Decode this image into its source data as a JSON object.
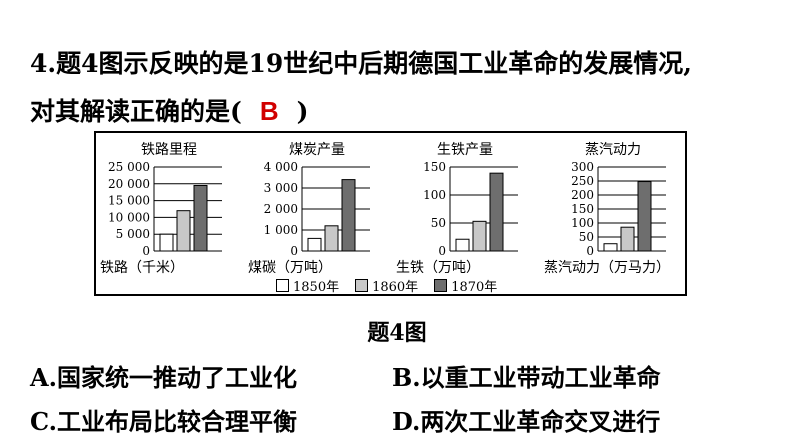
{
  "question": {
    "line1": "4.题4图示反映的是19世纪中后期德国工业革命的发展情况,",
    "line2_prefix": "对其解读正确的是(",
    "answer": "B",
    "line2_suffix": ")"
  },
  "figure_caption": "题4图",
  "legend": [
    "1850年",
    "1860年",
    "1870年"
  ],
  "colors": {
    "bar_1850": "#ffffff",
    "bar_1860": "#c8c8c8",
    "bar_1870": "#6e6e6e",
    "answer": "#d10000"
  },
  "chart_data": [
    {
      "type": "bar",
      "title": "铁路里程",
      "xlabel": "铁路（千米）",
      "categories": [
        "1850年",
        "1860年",
        "1870年"
      ],
      "values": [
        5000,
        12000,
        19500
      ],
      "ylim": [
        0,
        25000
      ],
      "yticks": [
        0,
        5000,
        10000,
        15000,
        20000,
        25000
      ],
      "ytick_labels": [
        "0",
        "5 000",
        "10 000",
        "15 000",
        "20 000",
        "25 000"
      ]
    },
    {
      "type": "bar",
      "title": "煤炭产量",
      "xlabel": "煤碳（万吨）",
      "categories": [
        "1850年",
        "1860年",
        "1870年"
      ],
      "values": [
        600,
        1200,
        3400
      ],
      "ylim": [
        0,
        4000
      ],
      "yticks": [
        0,
        1000,
        2000,
        3000,
        4000
      ],
      "ytick_labels": [
        "0",
        "1 000",
        "2 000",
        "3 000",
        "4 000"
      ]
    },
    {
      "type": "bar",
      "title": "生铁产量",
      "xlabel": "生铁（万吨）",
      "categories": [
        "1850年",
        "1860年",
        "1870年"
      ],
      "values": [
        21,
        53,
        139
      ],
      "ylim": [
        0,
        150
      ],
      "yticks": [
        0,
        50,
        100,
        150
      ],
      "ytick_labels": [
        "0",
        "50",
        "100",
        "150"
      ]
    },
    {
      "type": "bar",
      "title": "蒸汽动力",
      "xlabel": "蒸汽动力（万马力）",
      "categories": [
        "1850年",
        "1860年",
        "1870年"
      ],
      "values": [
        26,
        85,
        248
      ],
      "ylim": [
        0,
        300
      ],
      "yticks": [
        0,
        50,
        100,
        150,
        200,
        250,
        300
      ],
      "ytick_labels": [
        "0",
        "50",
        "100",
        "150",
        "200",
        "250",
        "300"
      ]
    }
  ],
  "options": [
    {
      "letter": "A.",
      "text": "国家统一推动了工业化"
    },
    {
      "letter": "B.",
      "text": "以重工业带动工业革命"
    },
    {
      "letter": "C.",
      "text": "工业布局比较合理平衡"
    },
    {
      "letter": "D.",
      "text": "两次工业革命交叉进行"
    }
  ]
}
